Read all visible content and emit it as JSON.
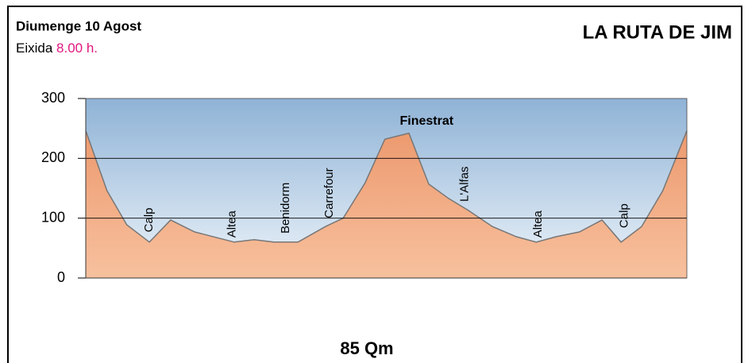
{
  "header": {
    "date": "Diumenge 10 Agost",
    "departure_label": "Eixida",
    "departure_time": "8.00 h."
  },
  "chart_data": {
    "type": "area",
    "title": "LA RUTA DE JIM",
    "xlabel": "85 Qm",
    "x": [
      0,
      3.0,
      5.8,
      9.0,
      12.0,
      15.4,
      21.0,
      23.8,
      26.6,
      30.0,
      33.9,
      36.4,
      39.5,
      42.3,
      45.7,
      48.5,
      51.3,
      54.1,
      57.5,
      60.9,
      63.7,
      66.5,
      69.8,
      73.0,
      75.7,
      78.6,
      81.6,
      85.0
    ],
    "values": [
      246,
      146,
      89,
      60,
      97,
      77,
      60,
      64,
      60,
      60,
      86,
      100,
      159,
      232,
      242,
      157,
      133,
      113,
      86,
      69,
      60,
      69,
      77,
      97,
      60,
      86,
      146,
      246
    ],
    "color": "#f2a77c",
    "xlim": [
      0,
      85
    ],
    "ylim": [
      0,
      300
    ],
    "yticks": [
      0,
      100,
      200,
      300
    ],
    "grid": true,
    "annotations": [
      {
        "text": "Calp",
        "x": 9.0,
        "y": 97
      },
      {
        "text": "Altea",
        "x": 20.7,
        "y": 90
      },
      {
        "text": "Benidorm",
        "x": 28.3,
        "y": 117
      },
      {
        "text": "Carrefour",
        "x": 34.5,
        "y": 142
      },
      {
        "text": "Finestrat",
        "x": 48.2,
        "y": 262
      },
      {
        "text": "L'Alfas",
        "x": 53.6,
        "y": 157
      },
      {
        "text": "Altea",
        "x": 64.0,
        "y": 90
      },
      {
        "text": "Calp",
        "x": 76.2,
        "y": 104
      }
    ]
  }
}
